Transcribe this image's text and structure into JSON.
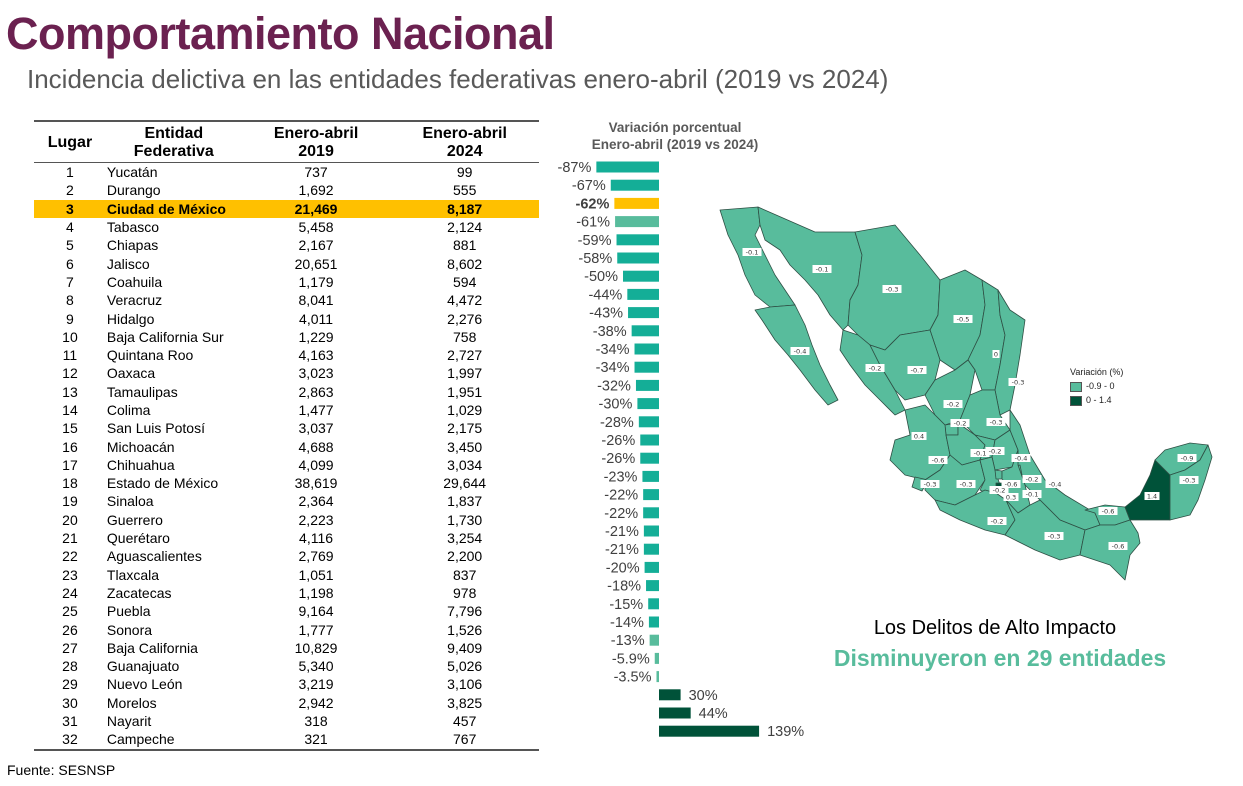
{
  "header": {
    "title": "Comportamiento Nacional",
    "subtitle": "Incidencia delictiva en las entidades federativas enero-abril (2019 vs 2024)"
  },
  "table": {
    "columns": [
      "Lugar",
      "Entidad Federativa",
      "Enero-abril 2019",
      "Enero-abril 2024"
    ],
    "column_lines": [
      [
        "Lugar"
      ],
      [
        "Entidad",
        "Federativa"
      ],
      [
        "Enero-abril",
        "2019"
      ],
      [
        "Enero-abril",
        "2024"
      ]
    ],
    "highlight_rank": 3,
    "highlight_color": "#ffc000",
    "rows": [
      {
        "rank": "1",
        "state": "Yucatán",
        "v2019": "737",
        "v2024": "99"
      },
      {
        "rank": "2",
        "state": "Durango",
        "v2019": "1,692",
        "v2024": "555"
      },
      {
        "rank": "3",
        "state": "Ciudad de México",
        "v2019": "21,469",
        "v2024": "8,187"
      },
      {
        "rank": "4",
        "state": "Tabasco",
        "v2019": "5,458",
        "v2024": "2,124"
      },
      {
        "rank": "5",
        "state": "Chiapas",
        "v2019": "2,167",
        "v2024": "881"
      },
      {
        "rank": "6",
        "state": "Jalisco",
        "v2019": "20,651",
        "v2024": "8,602"
      },
      {
        "rank": "7",
        "state": "Coahuila",
        "v2019": "1,179",
        "v2024": "594"
      },
      {
        "rank": "8",
        "state": "Veracruz",
        "v2019": "8,041",
        "v2024": "4,472"
      },
      {
        "rank": "9",
        "state": "Hidalgo",
        "v2019": "4,011",
        "v2024": "2,276"
      },
      {
        "rank": "10",
        "state": "Baja California Sur",
        "v2019": "1,229",
        "v2024": "758"
      },
      {
        "rank": "11",
        "state": "Quintana Roo",
        "v2019": "4,163",
        "v2024": "2,727"
      },
      {
        "rank": "12",
        "state": "Oaxaca",
        "v2019": "3,023",
        "v2024": "1,997"
      },
      {
        "rank": "13",
        "state": "Tamaulipas",
        "v2019": "2,863",
        "v2024": "1,951"
      },
      {
        "rank": "14",
        "state": "Colima",
        "v2019": "1,477",
        "v2024": "1,029"
      },
      {
        "rank": "15",
        "state": "San Luis Potosí",
        "v2019": "3,037",
        "v2024": "2,175"
      },
      {
        "rank": "16",
        "state": "Michoacán",
        "v2019": "4,688",
        "v2024": "3,450"
      },
      {
        "rank": "17",
        "state": "Chihuahua",
        "v2019": "4,099",
        "v2024": "3,034"
      },
      {
        "rank": "18",
        "state": "Estado de México",
        "v2019": "38,619",
        "v2024": "29,644"
      },
      {
        "rank": "19",
        "state": "Sinaloa",
        "v2019": "2,364",
        "v2024": "1,837"
      },
      {
        "rank": "20",
        "state": "Guerrero",
        "v2019": "2,223",
        "v2024": "1,730"
      },
      {
        "rank": "21",
        "state": "Querétaro",
        "v2019": "4,116",
        "v2024": "3,254"
      },
      {
        "rank": "22",
        "state": "Aguascalientes",
        "v2019": "2,769",
        "v2024": "2,200"
      },
      {
        "rank": "23",
        "state": "Tlaxcala",
        "v2019": "1,051",
        "v2024": "837"
      },
      {
        "rank": "24",
        "state": "Zacatecas",
        "v2019": "1,198",
        "v2024": "978"
      },
      {
        "rank": "25",
        "state": "Puebla",
        "v2019": "9,164",
        "v2024": "7,796"
      },
      {
        "rank": "26",
        "state": "Sonora",
        "v2019": "1,777",
        "v2024": "1,526"
      },
      {
        "rank": "27",
        "state": "Baja California",
        "v2019": "10,829",
        "v2024": "9,409"
      },
      {
        "rank": "28",
        "state": "Guanajuato",
        "v2019": "5,340",
        "v2024": "5,026"
      },
      {
        "rank": "29",
        "state": "Nuevo León",
        "v2019": "3,219",
        "v2024": "3,106"
      },
      {
        "rank": "30",
        "state": "Morelos",
        "v2019": "2,942",
        "v2024": "3,825"
      },
      {
        "rank": "31",
        "state": "Nayarit",
        "v2019": "318",
        "v2024": "457"
      },
      {
        "rank": "32",
        "state": "Campeche",
        "v2019": "321",
        "v2024": "767"
      }
    ],
    "source": "Fuente: SESNSP"
  },
  "chart_data": [
    {
      "type": "bar",
      "orientation": "horizontal",
      "title": "Variación porcentual Enero-abril (2019 vs 2024)",
      "title_lines": [
        "Variación porcentual",
        "Enero-abril (2019 vs 2024)"
      ],
      "categories": [
        "Yucatán",
        "Durango",
        "Ciudad de México",
        "Tabasco",
        "Chiapas",
        "Jalisco",
        "Coahuila",
        "Veracruz",
        "Hidalgo",
        "Baja California Sur",
        "Quintana Roo",
        "Oaxaca",
        "Tamaulipas",
        "Colima",
        "San Luis Potosí",
        "Michoacán",
        "Chihuahua",
        "Estado de México",
        "Sinaloa",
        "Guerrero",
        "Querétaro",
        "Aguascalientes",
        "Tlaxcala",
        "Zacatecas",
        "Puebla",
        "Sonora",
        "Baja California",
        "Guanajuato",
        "Nuevo León",
        "Morelos",
        "Nayarit",
        "Campeche"
      ],
      "values": [
        -87,
        -67,
        -62,
        -61,
        -59,
        -58,
        -50,
        -44,
        -43,
        -38,
        -34,
        -34,
        -32,
        -30,
        -28,
        -26,
        -26,
        -23,
        -22,
        -22,
        -21,
        -21,
        -20,
        -18,
        -15,
        -14,
        -13,
        -5.9,
        -3.5,
        30,
        44,
        139
      ],
      "labels": [
        "-87%",
        "-67%",
        "-62%",
        "-61%",
        "-59%",
        "-58%",
        "-50%",
        "-44%",
        "-43%",
        "-38%",
        "-34%",
        "-34%",
        "-32%",
        "-30%",
        "-28%",
        "-26%",
        "-26%",
        "-23%",
        "-22%",
        "-22%",
        "-21%",
        "-21%",
        "-20%",
        "-18%",
        "-15%",
        "-14%",
        "-13%",
        "-5.9%",
        "-3.5%",
        "30%",
        "44%",
        "139%"
      ],
      "bold_label_index": 2,
      "colors": {
        "decrease": "#14ae97",
        "decrease_light": "#58bc9c",
        "highlight": "#ffc000",
        "increase": "#005239"
      },
      "light_indices": [
        3,
        26,
        27,
        28
      ],
      "xlabel": "",
      "ylabel": "",
      "grid": false
    },
    {
      "type": "choropleth",
      "title": "Variación (%)",
      "legend": [
        {
          "label": "-0.9 - 0",
          "color": "#58bc9c"
        },
        {
          "label": "0 - 1.4",
          "color": "#005239"
        }
      ],
      "legend_position": "right",
      "region_values": [
        {
          "state": "Baja California",
          "value": "-0.1"
        },
        {
          "state": "Sonora",
          "value": "-0.1"
        },
        {
          "state": "Chihuahua",
          "value": "-0.3"
        },
        {
          "state": "Coahuila",
          "value": "-0.5"
        },
        {
          "state": "Baja California Sur",
          "value": "-0.4"
        },
        {
          "state": "Sinaloa",
          "value": "-0.2"
        },
        {
          "state": "Durango",
          "value": "-0.7"
        },
        {
          "state": "Nuevo León",
          "value": "0"
        },
        {
          "state": "Tamaulipas",
          "value": "-0.3"
        },
        {
          "state": "Zacatecas",
          "value": "-0.2"
        },
        {
          "state": "Aguascalientes",
          "value": "-0.2"
        },
        {
          "state": "San Luis Potosí",
          "value": "-0.3"
        },
        {
          "state": "Nayarit",
          "value": "0.4"
        },
        {
          "state": "Jalisco",
          "value": "-0.6"
        },
        {
          "state": "Guanajuato",
          "value": "-0.1"
        },
        {
          "state": "Querétaro",
          "value": "-0.2"
        },
        {
          "state": "Hidalgo",
          "value": "-0.4"
        },
        {
          "state": "Colima",
          "value": "-0.3"
        },
        {
          "state": "Michoacán",
          "value": "-0.3"
        },
        {
          "state": "Estado de México",
          "value": "-0.2"
        },
        {
          "state": "Ciudad de México",
          "value": "-0.6"
        },
        {
          "state": "Morelos",
          "value": "0.3"
        },
        {
          "state": "Tlaxcala",
          "value": "-0.2"
        },
        {
          "state": "Puebla",
          "value": "-0.1"
        },
        {
          "state": "Veracruz",
          "value": "-0.4"
        },
        {
          "state": "Guerrero",
          "value": "-0.2"
        },
        {
          "state": "Oaxaca",
          "value": "-0.3"
        },
        {
          "state": "Tabasco",
          "value": "-0.6"
        },
        {
          "state": "Chiapas",
          "value": "-0.6"
        },
        {
          "state": "Campeche",
          "value": "1.4"
        },
        {
          "state": "Yucatán",
          "value": "-0.9"
        },
        {
          "state": "Quintana Roo",
          "value": "-0.3"
        }
      ]
    }
  ],
  "map_legend": {
    "title": "Variación (%)",
    "items": [
      {
        "label": "-0.9 - 0",
        "color": "#58bc9c"
      },
      {
        "label": "0 - 1.4",
        "color": "#005239"
      }
    ]
  },
  "headline": {
    "line1": "Los Delitos de Alto Impacto",
    "line2": "Disminuyeron en 29 entidades"
  }
}
